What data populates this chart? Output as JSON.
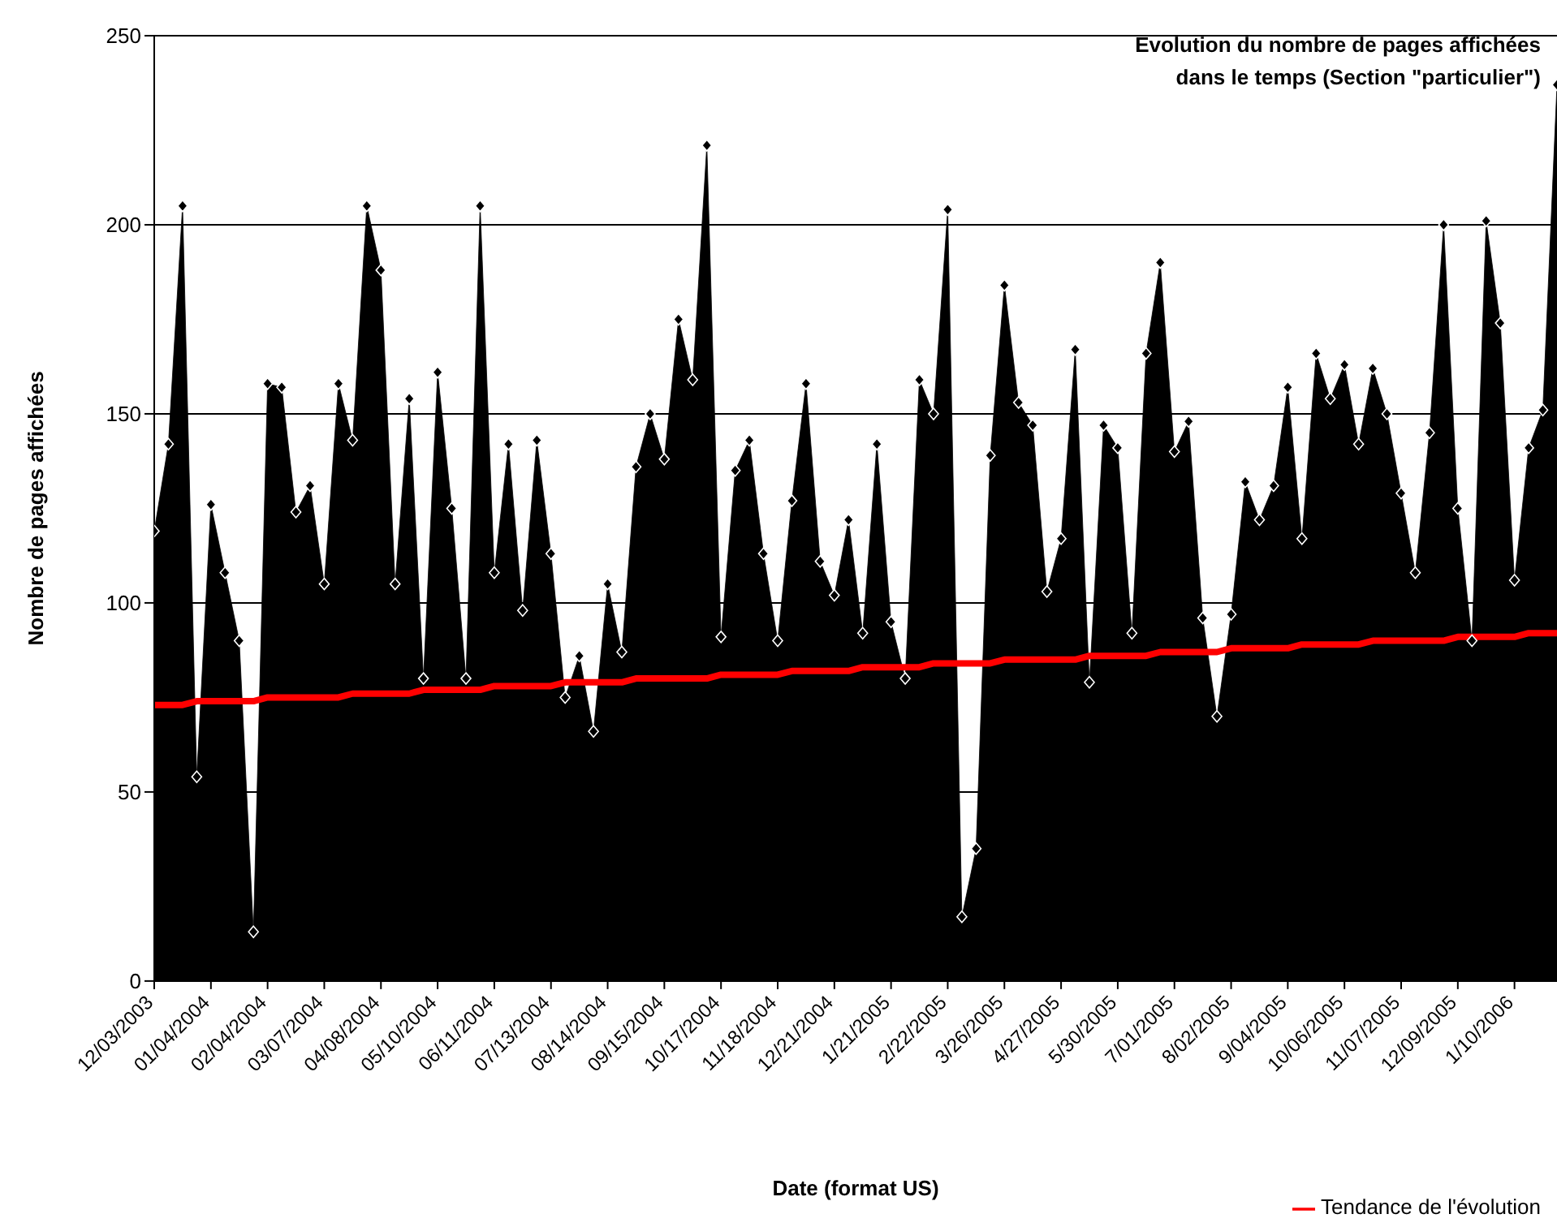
{
  "chart_data": {
    "type": "area",
    "title": "Evolution du nombre de pages affichées\ndans le temps (Section \"particulier\")",
    "xlabel": "Date (format US)",
    "ylabel": "Nombre de pages affichées",
    "categories": [
      "12/03/2003",
      null,
      null,
      null,
      "01/04/2004",
      null,
      null,
      null,
      "02/04/2004",
      null,
      null,
      null,
      "03/07/2004",
      null,
      null,
      null,
      "04/08/2004",
      null,
      null,
      null,
      "05/10/2004",
      null,
      null,
      null,
      "06/11/2004",
      null,
      null,
      null,
      "07/13/2004",
      null,
      null,
      null,
      "08/14/2004",
      null,
      null,
      null,
      "09/15/2004",
      null,
      null,
      null,
      "10/17/2004",
      null,
      null,
      null,
      "11/18/2004",
      null,
      null,
      null,
      "12/21/2004",
      null,
      null,
      null,
      "1/21/2005",
      null,
      null,
      null,
      "2/22/2005",
      null,
      null,
      null,
      "3/26/2005",
      null,
      null,
      null,
      "4/27/2005",
      null,
      null,
      null,
      "5/30/2005",
      null,
      null,
      null,
      "7/01/2005",
      null,
      null,
      null,
      "8/02/2005",
      null,
      null,
      null,
      "9/04/2005",
      null,
      null,
      null,
      "10/06/2005",
      null,
      null,
      null,
      "11/07/2005",
      null,
      null,
      null,
      "12/09/2005",
      null,
      null,
      null,
      "1/10/2006",
      null,
      null,
      null
    ],
    "series": [
      {
        "color": "#000000",
        "marker": "diamond",
        "values": [
          119,
          142,
          205,
          54,
          126,
          108,
          90,
          13,
          158,
          157,
          124,
          131,
          105,
          158,
          143,
          205,
          188,
          105,
          154,
          80,
          161,
          125,
          80,
          205,
          108,
          142,
          98,
          143,
          113,
          75,
          86,
          66,
          105,
          87,
          136,
          150,
          138,
          175,
          159,
          221,
          91,
          135,
          143,
          113,
          90,
          127,
          158,
          111,
          102,
          122,
          92,
          142,
          95,
          80,
          159,
          150,
          204,
          17,
          35,
          139,
          184,
          153,
          147,
          103,
          117,
          167,
          79,
          147,
          141,
          92,
          166,
          190,
          140,
          148,
          96,
          70,
          97,
          132,
          122,
          131,
          157,
          117,
          166,
          154,
          163,
          142,
          162,
          150,
          129,
          108,
          145,
          200,
          125,
          90,
          201,
          174,
          106,
          141,
          151,
          237
        ]
      },
      {
        "type": "line",
        "name": "Tendance de l'évolution",
        "color": "#ff0000",
        "marker": "none",
        "values": [
          73,
          73,
          73,
          74,
          74,
          74,
          74,
          74,
          75,
          75,
          75,
          75,
          75,
          75,
          76,
          76,
          76,
          76,
          76,
          77,
          77,
          77,
          77,
          77,
          78,
          78,
          78,
          78,
          78,
          79,
          79,
          79,
          79,
          79,
          80,
          80,
          80,
          80,
          80,
          80,
          81,
          81,
          81,
          81,
          81,
          82,
          82,
          82,
          82,
          82,
          83,
          83,
          83,
          83,
          83,
          84,
          84,
          84,
          84,
          84,
          85,
          85,
          85,
          85,
          85,
          85,
          86,
          86,
          86,
          86,
          86,
          87,
          87,
          87,
          87,
          87,
          88,
          88,
          88,
          88,
          88,
          89,
          89,
          89,
          89,
          89,
          90,
          90,
          90,
          90,
          90,
          90,
          91,
          91,
          91,
          91,
          91,
          92,
          92,
          92
        ]
      }
    ],
    "ylim": [
      0,
      250
    ],
    "yticks": [
      0,
      50,
      100,
      150,
      200,
      250
    ],
    "grid": "y",
    "legend": "bottom right"
  }
}
